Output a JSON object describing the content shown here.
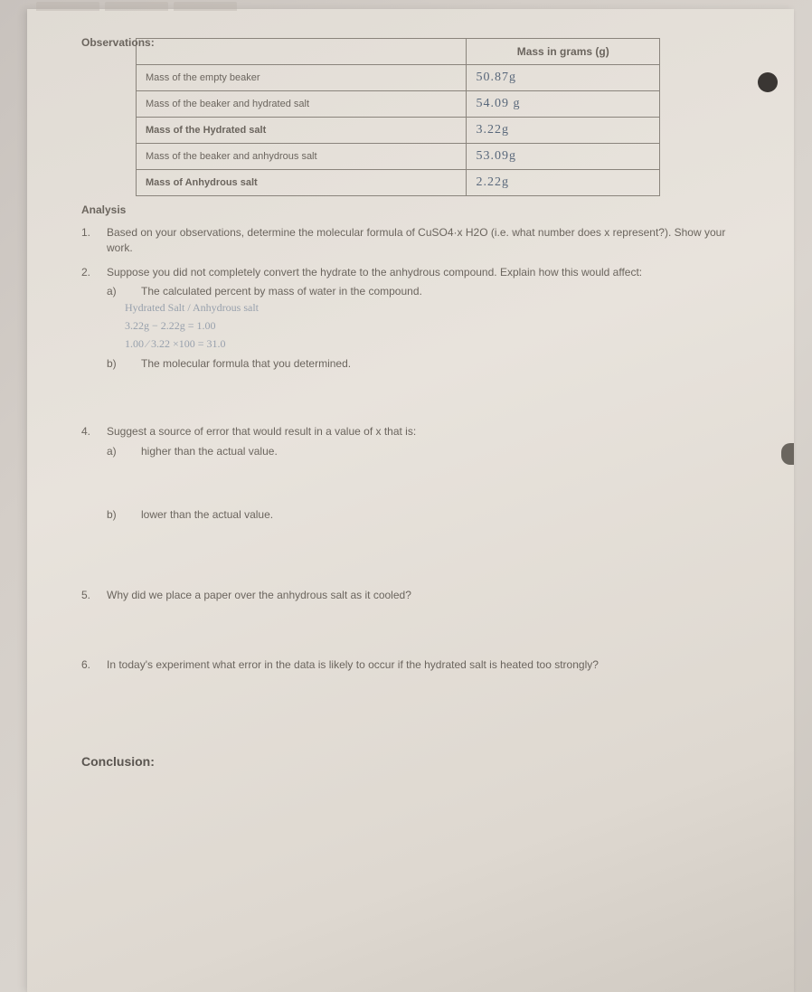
{
  "observations": {
    "label": "Observations:",
    "header_col2": "Mass in grams (g)",
    "rows": [
      {
        "label": "Mass of the empty beaker",
        "value": "50.87g",
        "bold": false
      },
      {
        "label": "Mass of the beaker and hydrated salt",
        "value": "54.09 g",
        "bold": false
      },
      {
        "label": "Mass of the Hydrated salt",
        "value": "3.22g",
        "bold": true
      },
      {
        "label": "Mass of the beaker and anhydrous salt",
        "value": "53.09g",
        "bold": false
      },
      {
        "label": "Mass of Anhydrous salt",
        "value": "2.22g",
        "bold": true
      }
    ]
  },
  "analysis": {
    "label": "Analysis",
    "q1": {
      "num": "1.",
      "text": "Based on your observations, determine the molecular formula of CuSO4·x H2O (i.e. what number does x represent?). Show your work."
    },
    "q2": {
      "num": "2.",
      "text": "Suppose you did not completely convert the hydrate to the anhydrous compound. Explain how this would affect:",
      "a": {
        "lbl": "a)",
        "text": "The calculated percent by mass of water in the compound."
      },
      "hand1": "Hydrated Salt / Anhydrous salt",
      "hand2": "3.22g − 2.22g = 1.00",
      "hand3": "1.00 ⁄ 3.22 ×100 = 31.0",
      "b": {
        "lbl": "b)",
        "text": "The molecular formula that you determined."
      }
    },
    "q4": {
      "num": "4.",
      "text": "Suggest a source of error that would result in a value of x that is:",
      "a": {
        "lbl": "a)",
        "text": "higher than the actual value."
      },
      "b": {
        "lbl": "b)",
        "text": "lower than the actual value."
      }
    },
    "q5": {
      "num": "5.",
      "text": "Why did we place a paper over the anhydrous salt as it cooled?"
    },
    "q6": {
      "num": "6.",
      "text": "In today's experiment what error in the data is likely to occur if the hydrated salt is heated too strongly?"
    }
  },
  "conclusion_label": "Conclusion:"
}
